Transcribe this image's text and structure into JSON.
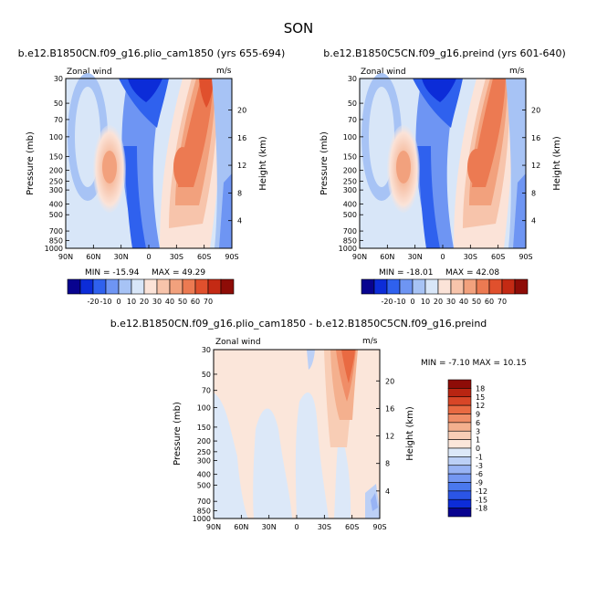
{
  "figure": {
    "title": "SON"
  },
  "colors": {
    "levels_abs": [
      -20,
      -10,
      0,
      10,
      20,
      30,
      40,
      50,
      60,
      70
    ],
    "palette_abs": [
      "#08038f",
      "#0c2cd8",
      "#2f61ee",
      "#6e95f3",
      "#a7c3f5",
      "#d8e6f8",
      "#fbe3d8",
      "#f7c4ab",
      "#f2a17d",
      "#ec7a52",
      "#e0502d",
      "#c42a14",
      "#8e0c07"
    ],
    "levels_diff": [
      -18,
      -15,
      -12,
      -9,
      -6,
      -3,
      -1,
      0,
      1,
      3,
      6,
      9,
      12,
      15,
      18
    ],
    "palette_diff": [
      "#08038f",
      "#0c2cd8",
      "#2b55e6",
      "#4a78ee",
      "#7497f2",
      "#98b3f4",
      "#bcd0f6",
      "#dce8f8",
      "#fbe6da",
      "#f8cdb5",
      "#f4b08e",
      "#f08d67",
      "#e96a42",
      "#d84627",
      "#b92512",
      "#8e0c07"
    ]
  },
  "chart_data": [
    {
      "type": "contour",
      "title": "b.e12.B1850CN.f09_g16.plio_cam1850 (yrs 655-694)",
      "left_label": "Zonal wind",
      "right_label": "m/s",
      "xlabel": "",
      "ylabel": "Pressure (mb)",
      "y2label": "Height (km)",
      "x_ticks": [
        "90N",
        "60N",
        "30N",
        "0",
        "30S",
        "60S",
        "90S"
      ],
      "y_ticks": [
        30,
        50,
        70,
        100,
        150,
        200,
        250,
        300,
        400,
        500,
        700,
        850,
        1000
      ],
      "y2_ticks": [
        4,
        8,
        12,
        16,
        20
      ],
      "min_label": "MIN = -15.94",
      "max_label": "MAX = 49.29",
      "colorbar_labels": [
        "-20",
        "-10",
        "0",
        "10",
        "20",
        "30",
        "40",
        "50",
        "60",
        "70"
      ]
    },
    {
      "type": "contour",
      "title": "b.e12.B1850C5CN.f09_g16.preind (yrs 601-640)",
      "left_label": "Zonal wind",
      "right_label": "m/s",
      "xlabel": "",
      "ylabel": "Pressure (mb)",
      "y2label": "Height (km)",
      "x_ticks": [
        "90N",
        "60N",
        "30N",
        "0",
        "30S",
        "60S",
        "90S"
      ],
      "y_ticks": [
        30,
        50,
        70,
        100,
        150,
        200,
        250,
        300,
        400,
        500,
        700,
        850,
        1000
      ],
      "y2_ticks": [
        4,
        8,
        12,
        16,
        20
      ],
      "min_label": "MIN = -18.01",
      "max_label": "MAX = 42.08",
      "colorbar_labels": [
        "-20",
        "-10",
        "0",
        "10",
        "20",
        "30",
        "40",
        "50",
        "60",
        "70"
      ]
    },
    {
      "type": "contour",
      "title": "b.e12.B1850CN.f09_g16.plio_cam1850 - b.e12.B1850C5CN.f09_g16.preind",
      "left_label": "Zonal wind",
      "right_label": "m/s",
      "xlabel": "",
      "ylabel": "Pressure (mb)",
      "y2label": "Height (km)",
      "x_ticks": [
        "90N",
        "60N",
        "30N",
        "0",
        "30S",
        "60S",
        "90S"
      ],
      "y_ticks": [
        30,
        50,
        70,
        100,
        150,
        200,
        250,
        300,
        400,
        500,
        700,
        850,
        1000
      ],
      "y2_ticks": [
        4,
        8,
        12,
        16,
        20
      ],
      "minmax_label": "MIN = -7.10   MAX = 10.15",
      "colorbar_labels": [
        "18",
        "15",
        "12",
        "9",
        "6",
        "3",
        "1",
        "0",
        "-1",
        "-3",
        "-6",
        "-9",
        "-12",
        "-15",
        "-18"
      ]
    }
  ]
}
